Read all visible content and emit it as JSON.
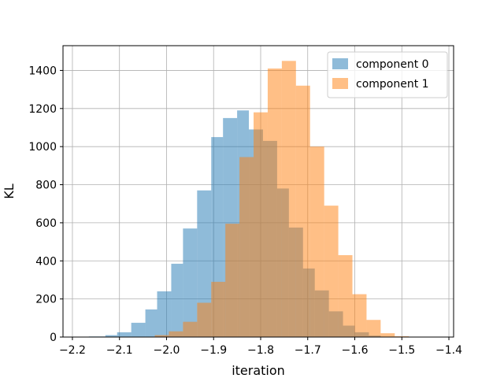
{
  "chart_data": {
    "type": "bar",
    "xlabel": "iteration",
    "ylabel": "KL",
    "xlim": [
      -2.22,
      -1.39
    ],
    "ylim": [
      0,
      1530
    ],
    "grid": true,
    "legend_position": "top-right",
    "x_ticks": [
      -2.2,
      -2.1,
      -2.0,
      -1.9,
      -1.8,
      -1.7,
      -1.6,
      -1.5,
      -1.4
    ],
    "x_tick_labels": [
      "−2.2",
      "−2.1",
      "−2.0",
      "−1.9",
      "−1.8",
      "−1.7",
      "−1.6",
      "−1.5",
      "−1.4"
    ],
    "y_ticks": [
      0,
      200,
      400,
      600,
      800,
      1000,
      1200,
      1400
    ],
    "y_tick_labels": [
      "0",
      "200",
      "400",
      "600",
      "800",
      "1000",
      "1200",
      "1400"
    ],
    "series": [
      {
        "name": "component 0",
        "color": "#1f77b4",
        "opacity": 0.5,
        "bins": [
          {
            "x0": -2.165,
            "x1": -2.13,
            "count": 3
          },
          {
            "x0": -2.13,
            "x1": -2.105,
            "count": 10
          },
          {
            "x0": -2.105,
            "x1": -2.075,
            "count": 25
          },
          {
            "x0": -2.075,
            "x1": -2.045,
            "count": 75
          },
          {
            "x0": -2.045,
            "x1": -2.02,
            "count": 145
          },
          {
            "x0": -2.02,
            "x1": -1.99,
            "count": 240
          },
          {
            "x0": -1.99,
            "x1": -1.965,
            "count": 385
          },
          {
            "x0": -1.965,
            "x1": -1.935,
            "count": 570
          },
          {
            "x0": -1.935,
            "x1": -1.905,
            "count": 770
          },
          {
            "x0": -1.905,
            "x1": -1.88,
            "count": 1050
          },
          {
            "x0": -1.88,
            "x1": -1.85,
            "count": 1150
          },
          {
            "x0": -1.85,
            "x1": -1.825,
            "count": 1190
          },
          {
            "x0": -1.825,
            "x1": -1.795,
            "count": 1090
          },
          {
            "x0": -1.795,
            "x1": -1.765,
            "count": 1030
          },
          {
            "x0": -1.765,
            "x1": -1.74,
            "count": 780
          },
          {
            "x0": -1.74,
            "x1": -1.71,
            "count": 575
          },
          {
            "x0": -1.71,
            "x1": -1.685,
            "count": 360
          },
          {
            "x0": -1.685,
            "x1": -1.655,
            "count": 245
          },
          {
            "x0": -1.655,
            "x1": -1.625,
            "count": 135
          },
          {
            "x0": -1.625,
            "x1": -1.6,
            "count": 60
          },
          {
            "x0": -1.6,
            "x1": -1.57,
            "count": 25
          },
          {
            "x0": -1.57,
            "x1": -1.545,
            "count": 8
          },
          {
            "x0": -1.545,
            "x1": -1.515,
            "count": 2
          }
        ]
      },
      {
        "name": "component 1",
        "color": "#ff7f0e",
        "opacity": 0.5,
        "bins": [
          {
            "x0": -2.055,
            "x1": -2.025,
            "count": 1
          },
          {
            "x0": -2.025,
            "x1": -1.995,
            "count": 10
          },
          {
            "x0": -1.995,
            "x1": -1.965,
            "count": 30
          },
          {
            "x0": -1.965,
            "x1": -1.935,
            "count": 80
          },
          {
            "x0": -1.935,
            "x1": -1.905,
            "count": 180
          },
          {
            "x0": -1.905,
            "x1": -1.875,
            "count": 290
          },
          {
            "x0": -1.875,
            "x1": -1.845,
            "count": 595
          },
          {
            "x0": -1.845,
            "x1": -1.815,
            "count": 945
          },
          {
            "x0": -1.815,
            "x1": -1.785,
            "count": 1180
          },
          {
            "x0": -1.785,
            "x1": -1.755,
            "count": 1410
          },
          {
            "x0": -1.755,
            "x1": -1.725,
            "count": 1450
          },
          {
            "x0": -1.725,
            "x1": -1.695,
            "count": 1320
          },
          {
            "x0": -1.695,
            "x1": -1.665,
            "count": 1000
          },
          {
            "x0": -1.665,
            "x1": -1.635,
            "count": 690
          },
          {
            "x0": -1.635,
            "x1": -1.605,
            "count": 430
          },
          {
            "x0": -1.605,
            "x1": -1.575,
            "count": 225
          },
          {
            "x0": -1.575,
            "x1": -1.545,
            "count": 90
          },
          {
            "x0": -1.545,
            "x1": -1.515,
            "count": 20
          },
          {
            "x0": -1.515,
            "x1": -1.485,
            "count": 4
          }
        ]
      }
    ]
  }
}
